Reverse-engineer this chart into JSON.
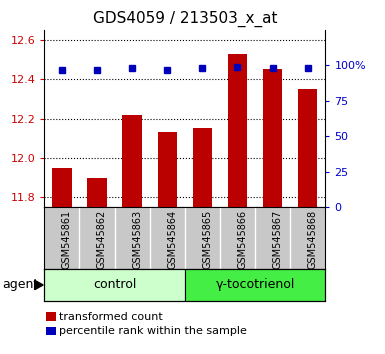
{
  "title": "GDS4059 / 213503_x_at",
  "samples": [
    "GSM545861",
    "GSM545862",
    "GSM545863",
    "GSM545864",
    "GSM545865",
    "GSM545866",
    "GSM545867",
    "GSM545868"
  ],
  "bar_values": [
    11.95,
    11.9,
    12.22,
    12.13,
    12.15,
    12.53,
    12.45,
    12.35
  ],
  "percentile_values": [
    97,
    97,
    98,
    97,
    98,
    99,
    98,
    98
  ],
  "ylim_left": [
    11.75,
    12.65
  ],
  "yticks_left": [
    11.8,
    12.0,
    12.2,
    12.4,
    12.6
  ],
  "ylim_right": [
    0,
    125
  ],
  "yticks_right": [
    0,
    25,
    50,
    75,
    100
  ],
  "ytick_labels_right": [
    "0",
    "25",
    "50",
    "75",
    "100%"
  ],
  "bar_color": "#bb0000",
  "dot_color": "#0000bb",
  "bar_bottom": 11.75,
  "groups": [
    {
      "label": "control",
      "start": 0,
      "end": 4,
      "color": "#ccffcc"
    },
    {
      "label": "γ-tocotrienol",
      "start": 4,
      "end": 8,
      "color": "#44ee44"
    }
  ],
  "agent_label": "agent",
  "legend_bar_label": "transformed count",
  "legend_dot_label": "percentile rank within the sample",
  "title_color": "#000000",
  "left_axis_color": "#cc0000",
  "right_axis_color": "#0000cc",
  "grid_color": "#000000",
  "sample_bg_color": "#c8c8c8"
}
